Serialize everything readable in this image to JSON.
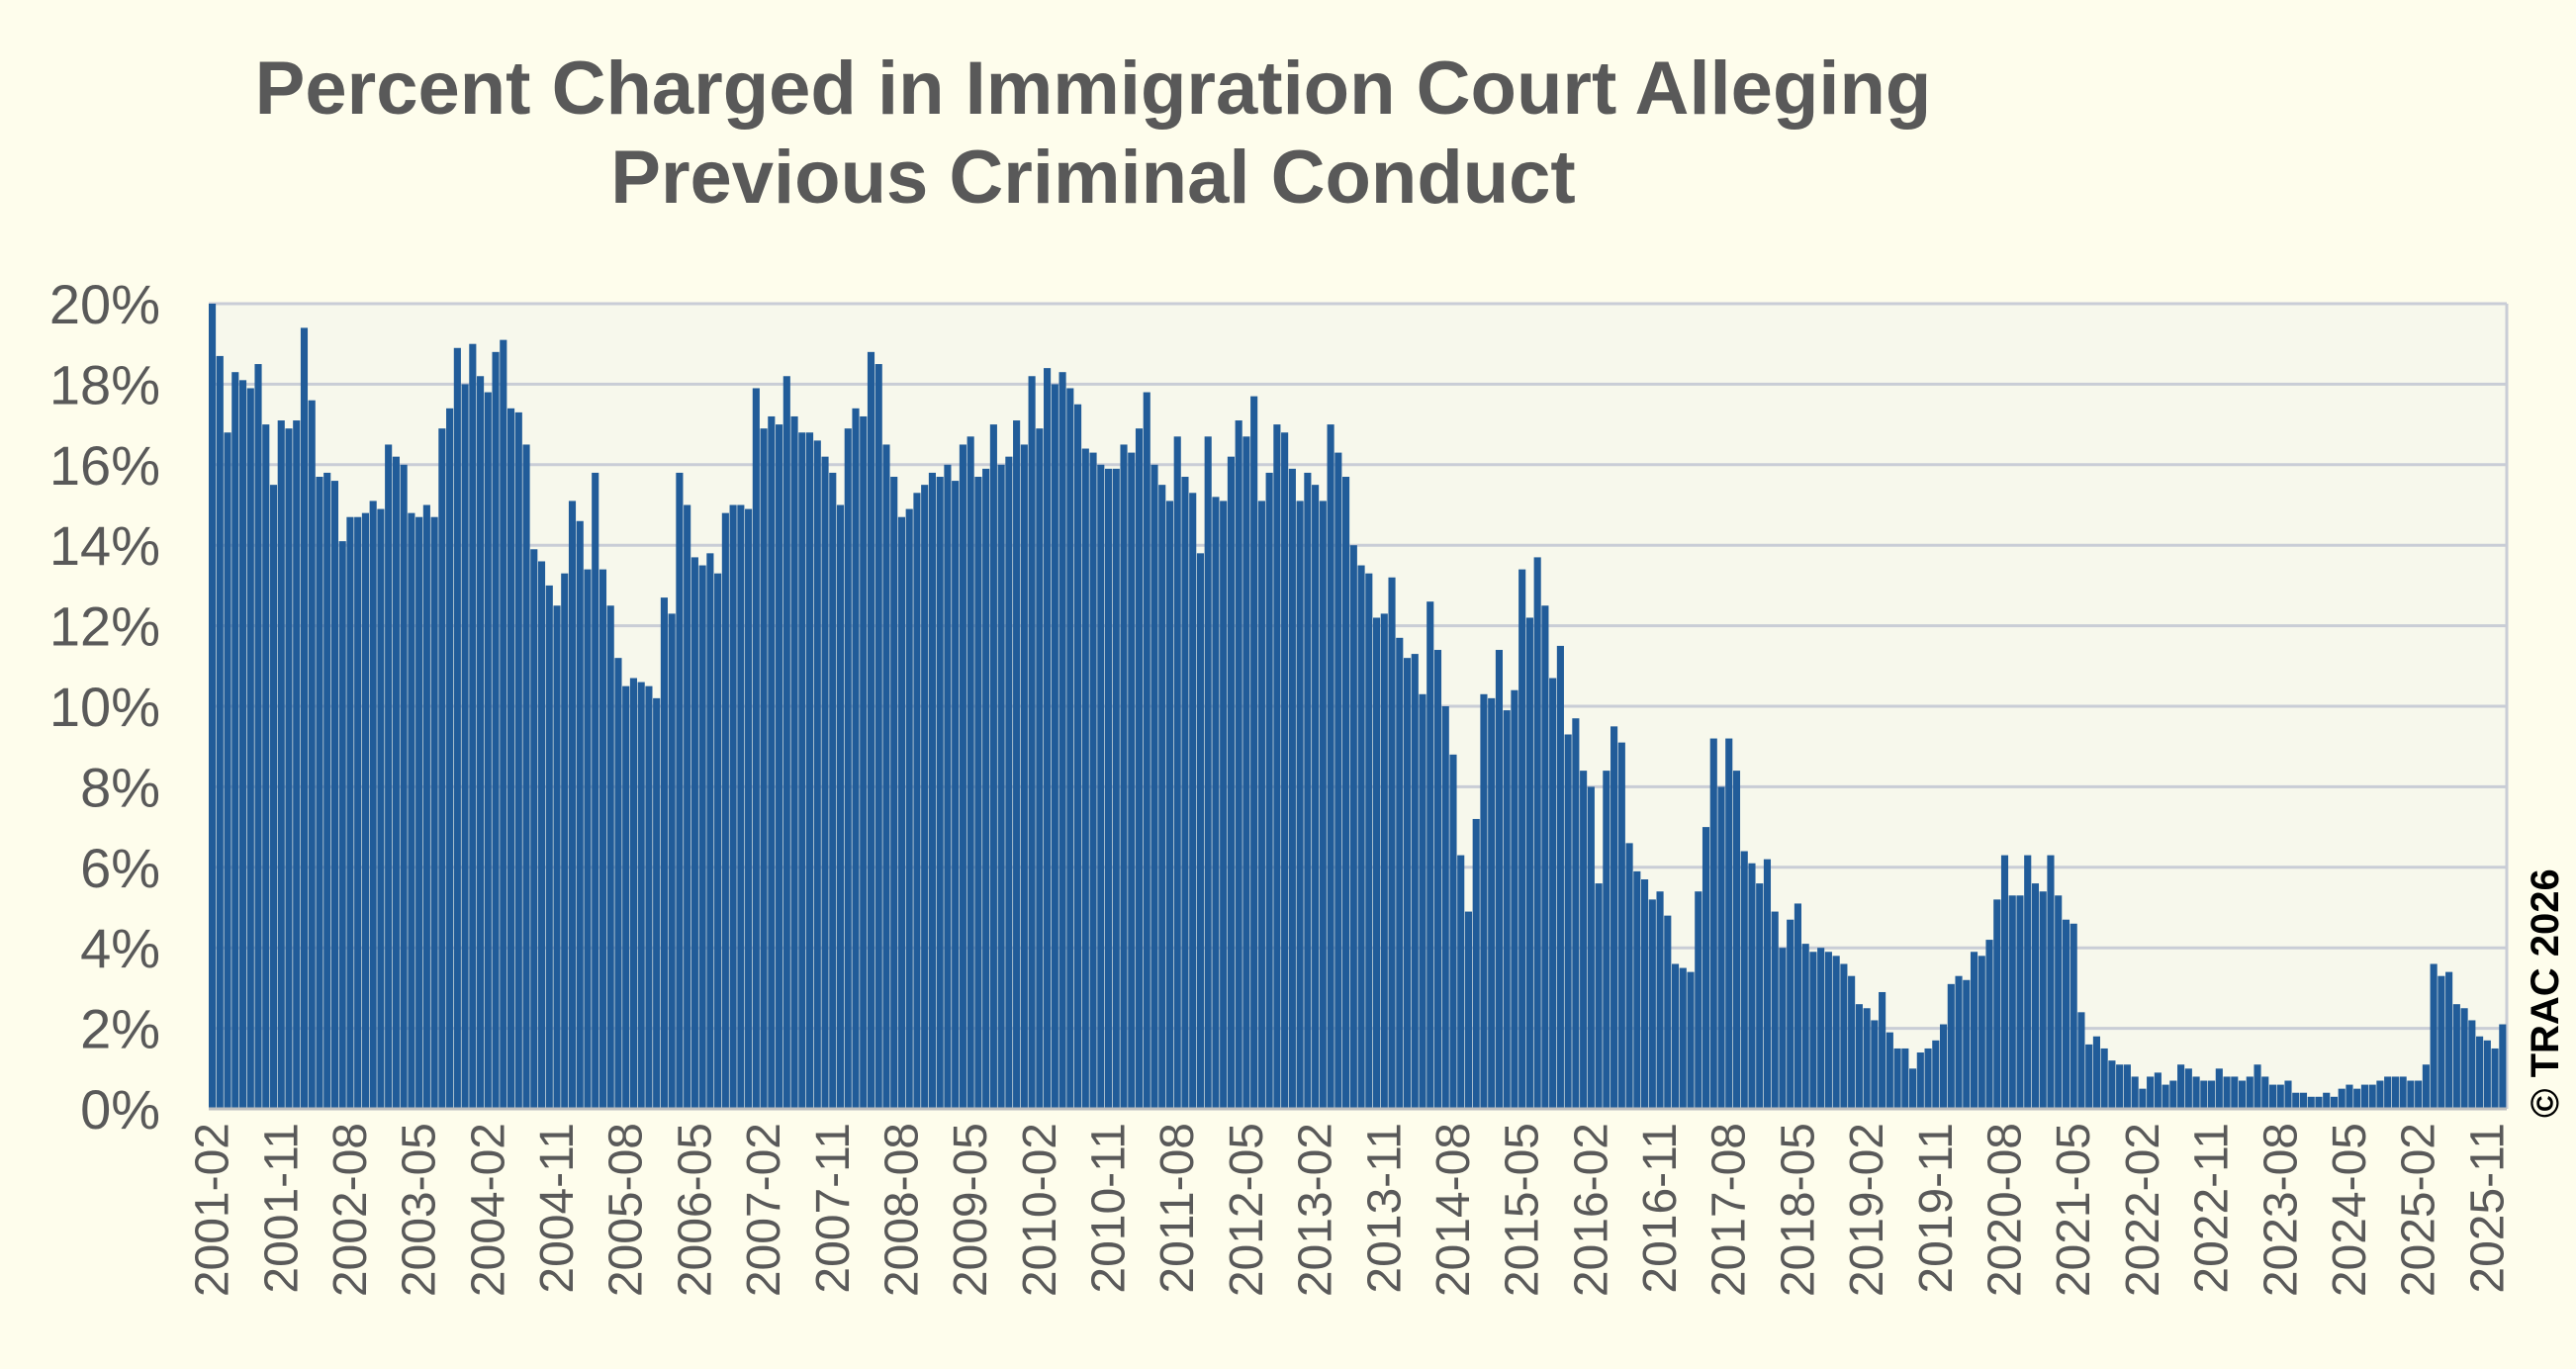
{
  "chart_data": {
    "type": "bar",
    "title_lines": [
      "Percent Charged in Immigration Court Alleging",
      "Previous Criminal Conduct"
    ],
    "xlabel": "",
    "ylabel": "",
    "ylim": [
      0,
      20
    ],
    "yticks": [
      "0%",
      "2%",
      "4%",
      "6%",
      "8%",
      "10%",
      "12%",
      "14%",
      "16%",
      "18%",
      "20%"
    ],
    "x_tick_labels": [
      "2001-02",
      "2001-11",
      "2002-08",
      "2003-05",
      "2004-02",
      "2004-11",
      "2005-08",
      "2006-05",
      "2007-02",
      "2007-11",
      "2008-08",
      "2009-05",
      "2010-02",
      "2010-11",
      "2011-08",
      "2012-05",
      "2013-02",
      "2013-11",
      "2014-08",
      "2015-05",
      "2016-02",
      "2016-11",
      "2017-08",
      "2018-05",
      "2019-02",
      "2019-11",
      "2020-08",
      "2021-05",
      "2022-02",
      "2022-11",
      "2023-08",
      "2024-05",
      "2025-02",
      "2025-11"
    ],
    "frequency": "monthly",
    "start": "2001-02",
    "end": "2026-01",
    "grid": true,
    "legend": "none",
    "bar_color": "#215c99",
    "annotation": "© TRAC 2026",
    "anchor_values": [
      [
        "2001-02",
        20.0
      ],
      [
        "2001-03",
        18.7
      ],
      [
        "2001-04",
        16.8
      ],
      [
        "2001-05",
        18.3
      ],
      [
        "2001-06",
        18.1
      ],
      [
        "2001-07",
        17.9
      ],
      [
        "2001-08",
        18.5
      ],
      [
        "2001-09",
        17.0
      ],
      [
        "2001-10",
        15.5
      ],
      [
        "2001-11",
        17.1
      ],
      [
        "2001-12",
        16.9
      ],
      [
        "2002-01",
        17.1
      ],
      [
        "2002-02",
        19.4
      ],
      [
        "2002-03",
        17.6
      ],
      [
        "2002-04",
        15.7
      ],
      [
        "2002-05",
        15.8
      ],
      [
        "2002-06",
        15.6
      ],
      [
        "2002-07",
        14.1
      ],
      [
        "2002-08",
        14.7
      ],
      [
        "2002-09",
        14.7
      ],
      [
        "2002-10",
        14.8
      ],
      [
        "2002-11",
        15.1
      ],
      [
        "2002-12",
        14.9
      ],
      [
        "2003-01",
        16.5
      ],
      [
        "2003-02",
        16.2
      ],
      [
        "2003-03",
        16.0
      ],
      [
        "2003-04",
        14.8
      ],
      [
        "2003-05",
        14.7
      ],
      [
        "2003-06",
        15.0
      ],
      [
        "2003-07",
        14.7
      ],
      [
        "2003-08",
        16.9
      ],
      [
        "2003-09",
        17.4
      ],
      [
        "2003-10",
        18.9
      ],
      [
        "2003-11",
        18.0
      ],
      [
        "2003-12",
        19.0
      ],
      [
        "2004-01",
        18.2
      ],
      [
        "2004-02",
        17.8
      ],
      [
        "2004-03",
        18.8
      ],
      [
        "2004-04",
        19.1
      ],
      [
        "2004-05",
        17.4
      ],
      [
        "2004-06",
        17.3
      ],
      [
        "2004-07",
        16.5
      ],
      [
        "2004-08",
        13.9
      ],
      [
        "2004-09",
        13.6
      ],
      [
        "2004-10",
        13.0
      ],
      [
        "2004-11",
        12.5
      ],
      [
        "2004-12",
        13.3
      ],
      [
        "2005-01",
        15.1
      ],
      [
        "2005-02",
        14.6
      ],
      [
        "2005-03",
        13.4
      ],
      [
        "2005-04",
        15.8
      ],
      [
        "2005-05",
        13.4
      ],
      [
        "2005-06",
        12.5
      ],
      [
        "2005-07",
        11.2
      ],
      [
        "2005-08",
        10.5
      ],
      [
        "2005-09",
        10.7
      ],
      [
        "2005-10",
        10.6
      ],
      [
        "2005-11",
        10.5
      ],
      [
        "2005-12",
        10.2
      ],
      [
        "2006-01",
        12.7
      ],
      [
        "2006-02",
        12.3
      ],
      [
        "2006-03",
        15.8
      ],
      [
        "2006-04",
        15.0
      ],
      [
        "2006-05",
        13.7
      ],
      [
        "2006-06",
        13.5
      ],
      [
        "2006-07",
        13.8
      ],
      [
        "2006-08",
        13.3
      ],
      [
        "2006-09",
        14.8
      ],
      [
        "2006-10",
        15.0
      ],
      [
        "2006-11",
        15.0
      ],
      [
        "2006-12",
        14.9
      ],
      [
        "2007-01",
        17.9
      ],
      [
        "2007-02",
        16.9
      ],
      [
        "2007-03",
        17.2
      ],
      [
        "2007-04",
        17.0
      ],
      [
        "2007-05",
        18.2
      ],
      [
        "2007-06",
        17.2
      ],
      [
        "2007-07",
        16.8
      ],
      [
        "2007-08",
        16.8
      ],
      [
        "2007-09",
        16.6
      ],
      [
        "2007-10",
        16.2
      ],
      [
        "2007-11",
        15.8
      ],
      [
        "2007-12",
        15.0
      ],
      [
        "2008-01",
        16.9
      ],
      [
        "2008-02",
        17.4
      ],
      [
        "2008-03",
        17.2
      ],
      [
        "2008-04",
        18.8
      ],
      [
        "2008-05",
        18.5
      ],
      [
        "2008-06",
        16.5
      ],
      [
        "2008-07",
        15.7
      ],
      [
        "2008-08",
        14.7
      ],
      [
        "2008-09",
        14.9
      ],
      [
        "2008-10",
        15.3
      ],
      [
        "2008-11",
        15.5
      ],
      [
        "2008-12",
        15.8
      ],
      [
        "2009-01",
        15.7
      ],
      [
        "2009-02",
        16.0
      ],
      [
        "2009-03",
        15.6
      ],
      [
        "2009-04",
        16.5
      ],
      [
        "2009-05",
        16.7
      ],
      [
        "2009-06",
        15.7
      ],
      [
        "2009-07",
        15.9
      ],
      [
        "2009-08",
        17.0
      ],
      [
        "2009-09",
        16.0
      ],
      [
        "2009-10",
        16.2
      ],
      [
        "2009-11",
        17.1
      ],
      [
        "2009-12",
        16.5
      ],
      [
        "2010-01",
        18.2
      ],
      [
        "2010-02",
        16.9
      ],
      [
        "2010-03",
        18.4
      ],
      [
        "2010-04",
        18.0
      ],
      [
        "2010-05",
        18.3
      ],
      [
        "2010-06",
        17.9
      ],
      [
        "2010-07",
        17.5
      ],
      [
        "2010-08",
        16.4
      ],
      [
        "2010-09",
        16.3
      ],
      [
        "2010-10",
        16.0
      ],
      [
        "2010-11",
        15.9
      ],
      [
        "2010-12",
        15.9
      ],
      [
        "2011-01",
        16.5
      ],
      [
        "2011-02",
        16.3
      ],
      [
        "2011-03",
        16.9
      ],
      [
        "2011-04",
        17.8
      ],
      [
        "2011-05",
        16.0
      ],
      [
        "2011-06",
        15.5
      ],
      [
        "2011-07",
        15.1
      ],
      [
        "2011-08",
        16.7
      ],
      [
        "2011-09",
        15.7
      ],
      [
        "2011-10",
        15.3
      ],
      [
        "2011-11",
        13.8
      ],
      [
        "2011-12",
        16.7
      ],
      [
        "2012-01",
        15.2
      ],
      [
        "2012-02",
        15.1
      ],
      [
        "2012-03",
        16.2
      ],
      [
        "2012-04",
        17.1
      ],
      [
        "2012-05",
        16.7
      ],
      [
        "2012-06",
        17.7
      ],
      [
        "2012-07",
        15.1
      ],
      [
        "2012-08",
        15.8
      ],
      [
        "2012-09",
        17.0
      ],
      [
        "2012-10",
        16.8
      ],
      [
        "2012-11",
        15.9
      ],
      [
        "2012-12",
        15.1
      ],
      [
        "2013-01",
        15.8
      ],
      [
        "2013-02",
        15.5
      ],
      [
        "2013-03",
        15.1
      ],
      [
        "2013-04",
        17.0
      ],
      [
        "2013-05",
        16.3
      ],
      [
        "2013-06",
        15.7
      ],
      [
        "2013-07",
        14.0
      ],
      [
        "2013-08",
        13.5
      ],
      [
        "2013-09",
        13.3
      ],
      [
        "2013-10",
        12.2
      ],
      [
        "2013-11",
        12.3
      ],
      [
        "2013-12",
        13.2
      ],
      [
        "2014-01",
        11.7
      ],
      [
        "2014-02",
        11.2
      ],
      [
        "2014-03",
        11.3
      ],
      [
        "2014-04",
        10.3
      ],
      [
        "2014-05",
        12.6
      ],
      [
        "2014-06",
        11.4
      ],
      [
        "2014-07",
        10.0
      ],
      [
        "2014-08",
        8.8
      ],
      [
        "2014-09",
        6.3
      ],
      [
        "2014-10",
        4.9
      ],
      [
        "2014-11",
        7.2
      ],
      [
        "2014-12",
        10.3
      ],
      [
        "2015-01",
        10.2
      ],
      [
        "2015-02",
        11.4
      ],
      [
        "2015-03",
        9.9
      ],
      [
        "2015-04",
        10.4
      ],
      [
        "2015-05",
        13.4
      ],
      [
        "2015-06",
        12.2
      ],
      [
        "2015-07",
        13.7
      ],
      [
        "2015-08",
        12.5
      ],
      [
        "2015-09",
        10.7
      ],
      [
        "2015-10",
        11.5
      ],
      [
        "2015-11",
        9.3
      ],
      [
        "2015-12",
        9.7
      ],
      [
        "2016-01",
        8.4
      ],
      [
        "2016-02",
        8.0
      ],
      [
        "2016-03",
        5.6
      ],
      [
        "2016-04",
        8.4
      ],
      [
        "2016-05",
        9.5
      ],
      [
        "2016-06",
        9.1
      ],
      [
        "2016-07",
        6.6
      ],
      [
        "2016-08",
        5.9
      ],
      [
        "2016-09",
        5.7
      ],
      [
        "2016-10",
        5.2
      ],
      [
        "2016-11",
        5.4
      ],
      [
        "2016-12",
        4.8
      ],
      [
        "2017-01",
        3.6
      ],
      [
        "2017-02",
        3.5
      ],
      [
        "2017-03",
        3.4
      ],
      [
        "2017-04",
        5.4
      ],
      [
        "2017-05",
        7.0
      ],
      [
        "2017-06",
        9.2
      ],
      [
        "2017-07",
        8.0
      ],
      [
        "2017-08",
        9.2
      ],
      [
        "2017-09",
        8.4
      ],
      [
        "2017-10",
        6.4
      ],
      [
        "2017-11",
        6.1
      ],
      [
        "2017-12",
        5.6
      ],
      [
        "2018-01",
        6.2
      ],
      [
        "2018-02",
        4.9
      ],
      [
        "2018-03",
        4.0
      ],
      [
        "2018-04",
        4.7
      ],
      [
        "2018-05",
        5.1
      ],
      [
        "2018-06",
        4.1
      ],
      [
        "2018-07",
        3.9
      ],
      [
        "2018-08",
        4.0
      ],
      [
        "2018-09",
        3.9
      ],
      [
        "2018-10",
        3.8
      ],
      [
        "2018-11",
        3.6
      ],
      [
        "2018-12",
        3.3
      ],
      [
        "2019-01",
        2.6
      ],
      [
        "2019-02",
        2.5
      ],
      [
        "2019-03",
        2.2
      ],
      [
        "2019-04",
        2.9
      ],
      [
        "2019-05",
        1.9
      ],
      [
        "2019-06",
        1.5
      ],
      [
        "2019-07",
        1.5
      ],
      [
        "2019-08",
        1.0
      ],
      [
        "2019-09",
        1.4
      ],
      [
        "2019-10",
        1.5
      ],
      [
        "2019-11",
        1.7
      ],
      [
        "2019-12",
        2.1
      ],
      [
        "2020-01",
        3.1
      ],
      [
        "2020-02",
        3.3
      ],
      [
        "2020-03",
        3.2
      ],
      [
        "2020-04",
        3.9
      ],
      [
        "2020-05",
        3.8
      ],
      [
        "2020-06",
        4.2
      ],
      [
        "2020-07",
        5.2
      ],
      [
        "2020-08",
        6.3
      ],
      [
        "2020-09",
        5.3
      ],
      [
        "2020-10",
        5.3
      ],
      [
        "2020-11",
        6.3
      ],
      [
        "2020-12",
        5.6
      ],
      [
        "2021-01",
        5.4
      ],
      [
        "2021-02",
        6.3
      ],
      [
        "2021-03",
        5.3
      ],
      [
        "2021-04",
        4.7
      ],
      [
        "2021-05",
        4.6
      ],
      [
        "2021-06",
        2.4
      ],
      [
        "2021-07",
        1.6
      ],
      [
        "2021-08",
        1.8
      ],
      [
        "2021-09",
        1.5
      ],
      [
        "2021-10",
        1.2
      ],
      [
        "2021-11",
        1.1
      ],
      [
        "2021-12",
        1.1
      ],
      [
        "2022-01",
        0.8
      ],
      [
        "2022-02",
        0.5
      ],
      [
        "2022-03",
        0.8
      ],
      [
        "2022-04",
        0.9
      ],
      [
        "2022-05",
        0.6
      ],
      [
        "2022-06",
        0.7
      ],
      [
        "2022-07",
        1.1
      ],
      [
        "2022-08",
        1.0
      ],
      [
        "2022-09",
        0.8
      ],
      [
        "2022-10",
        0.7
      ],
      [
        "2022-11",
        0.7
      ],
      [
        "2022-12",
        1.0
      ],
      [
        "2023-01",
        0.8
      ],
      [
        "2023-02",
        0.8
      ],
      [
        "2023-03",
        0.7
      ],
      [
        "2023-04",
        0.8
      ],
      [
        "2023-05",
        1.1
      ],
      [
        "2023-06",
        0.8
      ],
      [
        "2023-07",
        0.6
      ],
      [
        "2023-08",
        0.6
      ],
      [
        "2023-09",
        0.7
      ],
      [
        "2023-10",
        0.4
      ],
      [
        "2023-11",
        0.4
      ],
      [
        "2023-12",
        0.3
      ],
      [
        "2024-01",
        0.3
      ],
      [
        "2024-02",
        0.4
      ],
      [
        "2024-03",
        0.3
      ],
      [
        "2024-04",
        0.5
      ],
      [
        "2024-05",
        0.6
      ],
      [
        "2024-06",
        0.5
      ],
      [
        "2024-07",
        0.6
      ],
      [
        "2024-08",
        0.6
      ],
      [
        "2024-09",
        0.7
      ],
      [
        "2024-10",
        0.8
      ],
      [
        "2024-11",
        0.8
      ],
      [
        "2024-12",
        0.8
      ],
      [
        "2025-01",
        0.7
      ],
      [
        "2025-02",
        0.7
      ],
      [
        "2025-03",
        1.1
      ],
      [
        "2025-04",
        3.6
      ],
      [
        "2025-05",
        3.3
      ],
      [
        "2025-06",
        3.4
      ],
      [
        "2025-07",
        2.6
      ],
      [
        "2025-08",
        2.5
      ],
      [
        "2025-09",
        2.2
      ],
      [
        "2025-10",
        1.8
      ],
      [
        "2025-11",
        1.7
      ],
      [
        "2025-12",
        1.5
      ],
      [
        "2026-01",
        2.1
      ]
    ]
  }
}
